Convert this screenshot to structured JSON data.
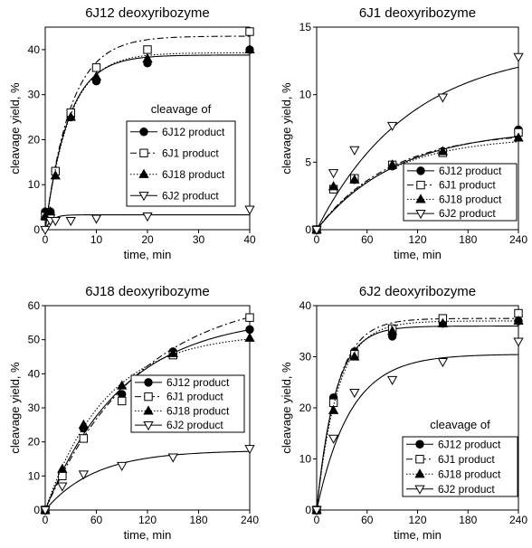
{
  "chart_data": [
    {
      "type": "scatter",
      "title": "6J12 deoxyribozyme",
      "xlabel": "time, min",
      "ylabel": "cleavage yield, %",
      "xlim": [
        0,
        40
      ],
      "ylim": [
        0,
        45
      ],
      "xticks": [
        0,
        10,
        20,
        30,
        40
      ],
      "yticks": [
        0,
        10,
        20,
        30,
        40
      ],
      "legend": {
        "title": "cleavage of",
        "position": "center-right"
      },
      "series": [
        {
          "name": "6J12 product",
          "marker": "filled-circle",
          "line": "solid",
          "x": [
            0,
            1,
            2,
            5,
            10,
            20,
            40
          ],
          "y": [
            4,
            4,
            13,
            25,
            33,
            37,
            40
          ],
          "fit": {
            "ymax": 38.8,
            "k": 0.22
          }
        },
        {
          "name": "6J1 product",
          "marker": "open-square",
          "line": "dashdot",
          "x": [
            0,
            1,
            2,
            5,
            10,
            20,
            40
          ],
          "y": [
            3,
            3,
            13,
            26,
            36,
            40,
            44
          ],
          "fit": {
            "ymax": 43.0,
            "k": 0.2
          }
        },
        {
          "name": "6J18 product",
          "marker": "filled-triangle",
          "line": "dotted",
          "x": [
            0,
            1,
            2,
            5,
            10,
            20,
            40
          ],
          "y": [
            3,
            4,
            12,
            25,
            34,
            38,
            40
          ],
          "fit": {
            "ymax": 39.3,
            "k": 0.21
          }
        },
        {
          "name": "6J2 product",
          "marker": "open-triangle-down",
          "line": "solid",
          "x": [
            0,
            1,
            2,
            5,
            10,
            20,
            40
          ],
          "y": [
            0,
            2,
            2,
            2,
            2.5,
            3,
            4.5
          ],
          "fit": {
            "ymax": 3.3,
            "k": 0.8
          }
        }
      ]
    },
    {
      "type": "scatter",
      "title": "6J1 deoxyribozyme",
      "xlabel": "time, min",
      "ylabel": "cleavage yield, %",
      "xlim": [
        0,
        240
      ],
      "ylim": [
        0,
        15
      ],
      "xticks": [
        0,
        60,
        120,
        180,
        240
      ],
      "yticks": [
        0,
        5,
        10,
        15
      ],
      "legend": {
        "title": "",
        "position": "bottom-right"
      },
      "series": [
        {
          "name": "6J12 product",
          "marker": "filled-circle",
          "line": "solid",
          "x": [
            0,
            20,
            45,
            90,
            150,
            240
          ],
          "y": [
            0,
            3,
            3.7,
            4.7,
            5.8,
            7.4
          ],
          "fit": {
            "ymax": 7.5,
            "k": 0.0105
          }
        },
        {
          "name": "6J1 product",
          "marker": "open-square",
          "line": "dashdot",
          "x": [
            0,
            20,
            45,
            90,
            150,
            240
          ],
          "y": [
            0,
            3,
            3.8,
            4.8,
            5.7,
            7.2
          ],
          "fit": {
            "ymax": 7.3,
            "k": 0.0115
          }
        },
        {
          "name": "6J18 product",
          "marker": "filled-triangle",
          "line": "dotted",
          "x": [
            0,
            20,
            45,
            90,
            150,
            240
          ],
          "y": [
            0,
            3.2,
            3.7,
            4.8,
            5.8,
            6.8
          ],
          "fit": {
            "ymax": 6.9,
            "k": 0.012
          }
        },
        {
          "name": "6J2 product",
          "marker": "open-triangle-down",
          "line": "solid",
          "x": [
            0,
            20,
            45,
            90,
            150,
            240
          ],
          "y": [
            0,
            4.2,
            5.9,
            7.7,
            9.8,
            12.8
          ],
          "fit": {
            "ymax": 13.6,
            "k": 0.009
          }
        }
      ]
    },
    {
      "type": "scatter",
      "title": "6J18 deoxyribozyme",
      "xlabel": "time, min",
      "ylabel": "cleavage yield, %",
      "xlim": [
        0,
        240
      ],
      "ylim": [
        0,
        60
      ],
      "xticks": [
        0,
        60,
        120,
        180,
        240
      ],
      "yticks": [
        0,
        10,
        20,
        30,
        40,
        50,
        60
      ],
      "legend": {
        "title": "",
        "position": "center-right"
      },
      "series": [
        {
          "name": "6J12 product",
          "marker": "filled-circle",
          "line": "solid",
          "x": [
            0,
            20,
            45,
            90,
            150,
            240
          ],
          "y": [
            0,
            11,
            24,
            34,
            46.5,
            53
          ],
          "fit": {
            "ymax": 57,
            "k": 0.011
          }
        },
        {
          "name": "6J1 product",
          "marker": "open-square",
          "line": "dashdot",
          "x": [
            0,
            20,
            45,
            90,
            150,
            240
          ],
          "y": [
            0,
            10,
            21,
            32,
            45.5,
            56.5
          ],
          "fit": {
            "ymax": 64,
            "k": 0.009
          }
        },
        {
          "name": "6J18 product",
          "marker": "filled-triangle",
          "line": "dotted",
          "x": [
            0,
            20,
            45,
            90,
            150,
            240
          ],
          "y": [
            0,
            12,
            25,
            36.5,
            46,
            50.5
          ],
          "fit": {
            "ymax": 52,
            "k": 0.014
          }
        },
        {
          "name": "6J2 product",
          "marker": "open-triangle-down",
          "line": "solid",
          "x": [
            0,
            20,
            45,
            90,
            150,
            240
          ],
          "y": [
            0,
            7,
            10.5,
            13,
            15.5,
            18
          ],
          "fit": {
            "ymax": 17.5,
            "k": 0.017
          }
        }
      ]
    },
    {
      "type": "scatter",
      "title": "6J2 deoxyribozyme",
      "xlabel": "time, min",
      "ylabel": "cleavage yield, %",
      "xlim": [
        0,
        240
      ],
      "ylim": [
        0,
        40
      ],
      "xticks": [
        0,
        60,
        120,
        180,
        240
      ],
      "yticks": [
        0,
        10,
        20,
        30,
        40
      ],
      "legend": {
        "title": "cleavage of",
        "position": "bottom-right"
      },
      "series": [
        {
          "name": "6J12 product",
          "marker": "filled-circle",
          "line": "solid",
          "x": [
            0,
            20,
            45,
            90,
            150,
            240
          ],
          "y": [
            0,
            22,
            31,
            34,
            36.5,
            37
          ],
          "fit": {
            "ymax": 36,
            "k": 0.045
          }
        },
        {
          "name": "6J1 product",
          "marker": "open-square",
          "line": "dashdot",
          "x": [
            0,
            20,
            45,
            90,
            150,
            240
          ],
          "y": [
            0,
            21,
            30.5,
            35.5,
            37.5,
            38.5
          ],
          "fit": {
            "ymax": 37.5,
            "k": 0.042
          }
        },
        {
          "name": "6J18 product",
          "marker": "filled-triangle",
          "line": "dotted",
          "x": [
            0,
            20,
            45,
            90,
            150,
            240
          ],
          "y": [
            0,
            19.5,
            30,
            35,
            36.5,
            37
          ],
          "fit": {
            "ymax": 37,
            "k": 0.04
          }
        },
        {
          "name": "6J2 product",
          "marker": "open-triangle-down",
          "line": "solid",
          "x": [
            0,
            20,
            45,
            90,
            150,
            240
          ],
          "y": [
            0,
            14,
            23,
            25.5,
            29,
            33
          ],
          "fit": {
            "ymax": 30.5,
            "k": 0.025
          }
        }
      ]
    }
  ]
}
